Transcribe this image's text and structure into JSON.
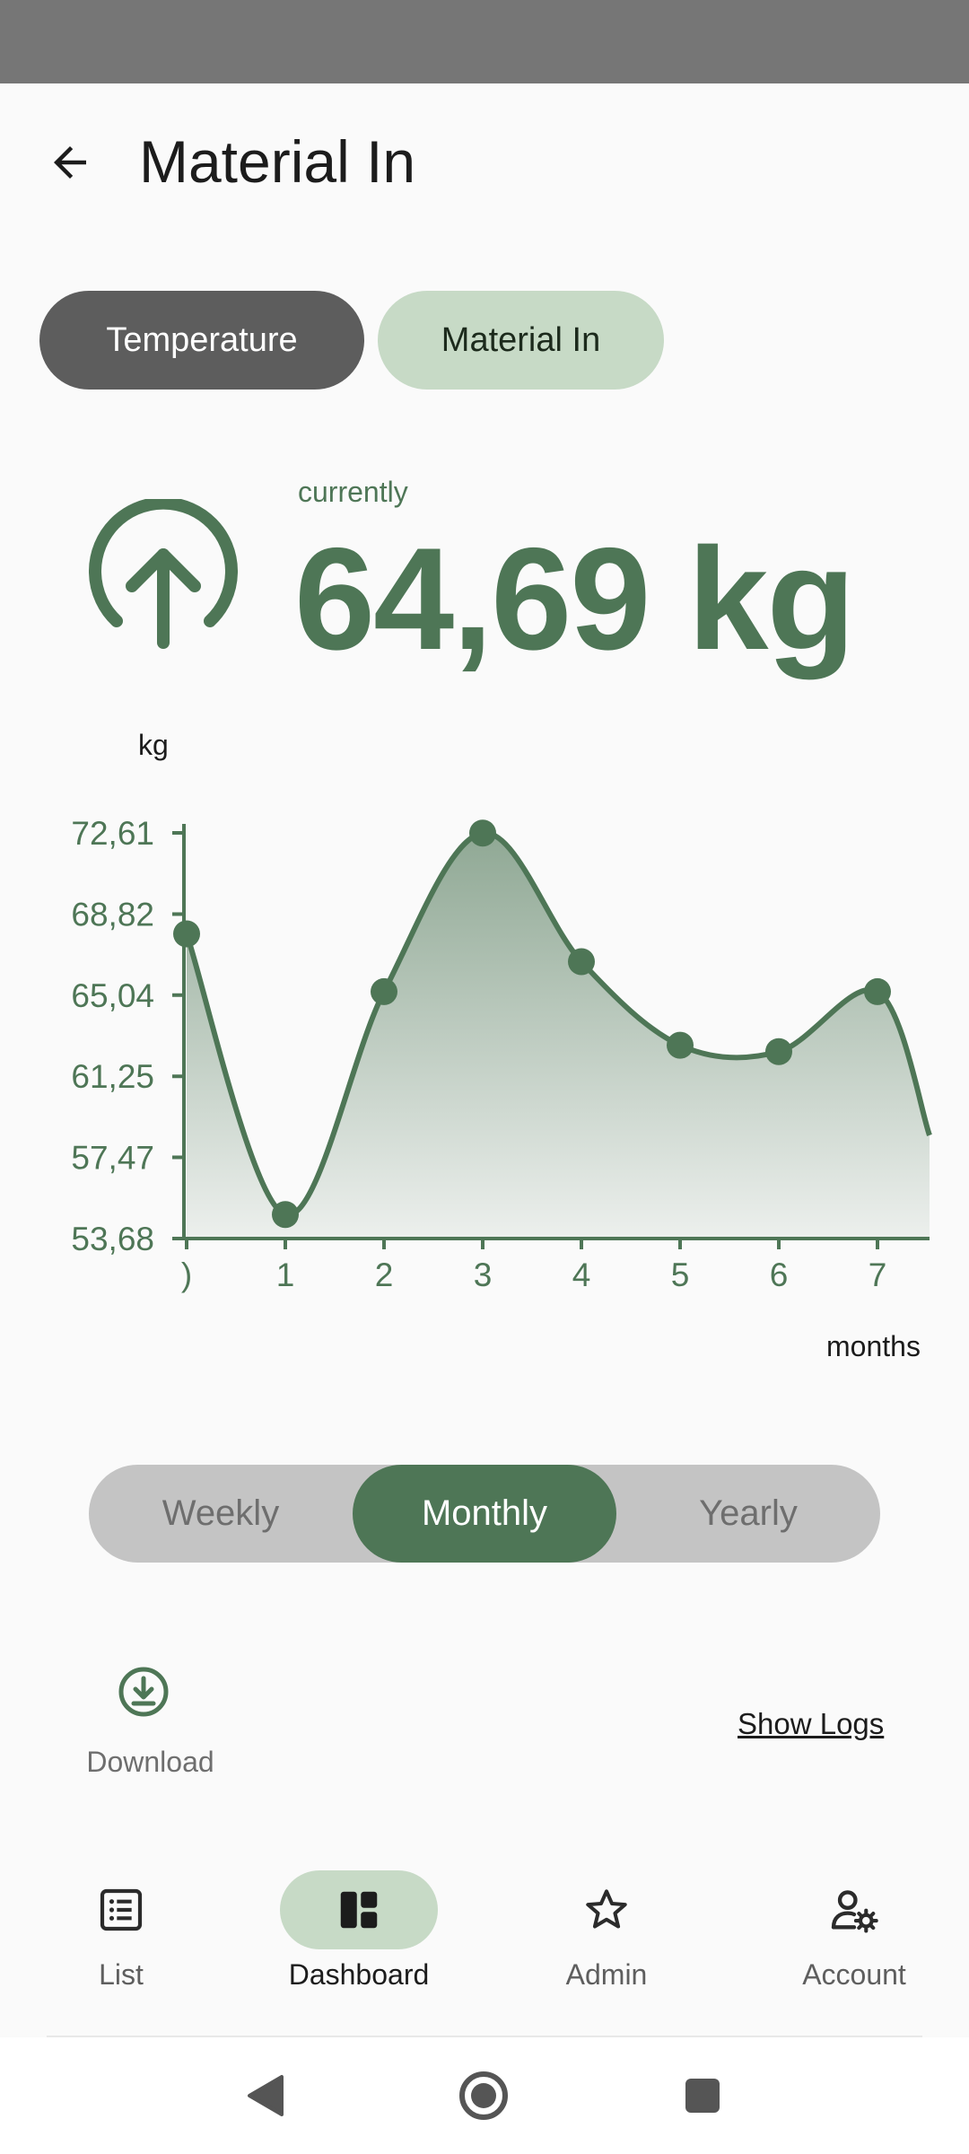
{
  "app_bar": {
    "title": "Material In"
  },
  "chips": [
    {
      "label": "Temperature",
      "selected": false
    },
    {
      "label": "Material In",
      "selected": true
    }
  ],
  "current": {
    "label": "currently",
    "value": "64,69 kg",
    "trend_icon": "arrow-up-circle-icon"
  },
  "chart_data": {
    "type": "area",
    "title": "",
    "ylabel": "kg",
    "xlabel": "months",
    "x": [
      "0",
      "1",
      "2",
      "3",
      "4",
      "5",
      "6",
      "7"
    ],
    "x_tick_labels": [
      ")",
      "1",
      "2",
      "3",
      "4",
      "5",
      "6",
      "7"
    ],
    "y_ticks": [
      "72,61",
      "68,82",
      "65,04",
      "61,25",
      "57,47",
      "53,68"
    ],
    "y_tick_values": [
      72.61,
      68.82,
      65.04,
      61.25,
      57.47,
      53.68
    ],
    "ylim": [
      53.68,
      72.61
    ],
    "series": [
      {
        "values": [
          67.9,
          54.8,
          65.2,
          72.6,
          66.6,
          62.7,
          62.4,
          65.2
        ]
      }
    ],
    "line_color": "#4e7656",
    "grid": false,
    "legend": "none"
  },
  "segmented": {
    "options": [
      "Weekly",
      "Monthly",
      "Yearly"
    ],
    "selected": "Monthly"
  },
  "download": {
    "label": "Download",
    "icon": "download-circle-icon"
  },
  "show_logs": "Show Logs",
  "bottom_nav": [
    {
      "label": "List",
      "icon": "list-icon",
      "active": false
    },
    {
      "label": "Dashboard",
      "icon": "dashboard-icon",
      "active": true
    },
    {
      "label": "Admin",
      "icon": "star-icon",
      "active": false
    },
    {
      "label": "Account",
      "icon": "account-settings-icon",
      "active": false
    }
  ],
  "colors": {
    "accent": "#4e7656",
    "chip_selected": "#c7dac6",
    "chip_dark": "#5d5d5d",
    "segment_bg": "#c4c4c4"
  }
}
